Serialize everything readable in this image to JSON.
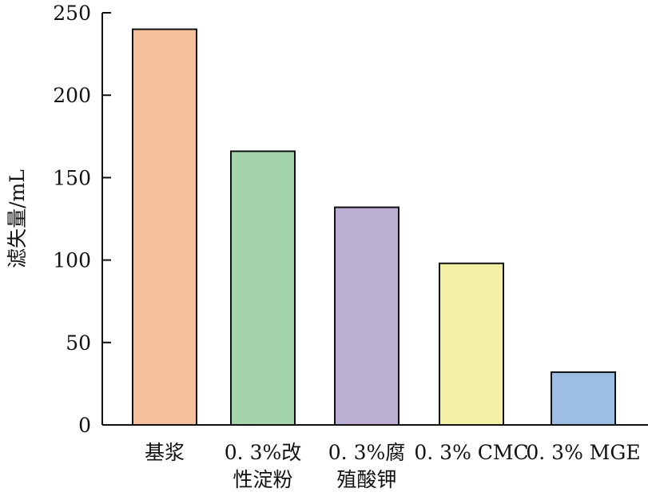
{
  "chart_data": {
    "type": "bar",
    "title": "",
    "xlabel": "",
    "ylabel": "滤失量/mL",
    "ylim": [
      0,
      250
    ],
    "yticks": [
      0,
      50,
      100,
      150,
      200,
      250
    ],
    "grid": false,
    "categories": [
      [
        "基浆"
      ],
      [
        "0. 3%改",
        "性淀粉"
      ],
      [
        "0. 3%腐",
        "殖酸钾"
      ],
      [
        "0. 3% CMC"
      ],
      [
        "0. 3% MGE"
      ]
    ],
    "values": [
      240,
      166,
      132,
      98,
      32
    ],
    "colors": [
      "#f5c09b",
      "#a3d4ac",
      "#bbaed3",
      "#f3f0a6",
      "#9dbde2"
    ]
  }
}
